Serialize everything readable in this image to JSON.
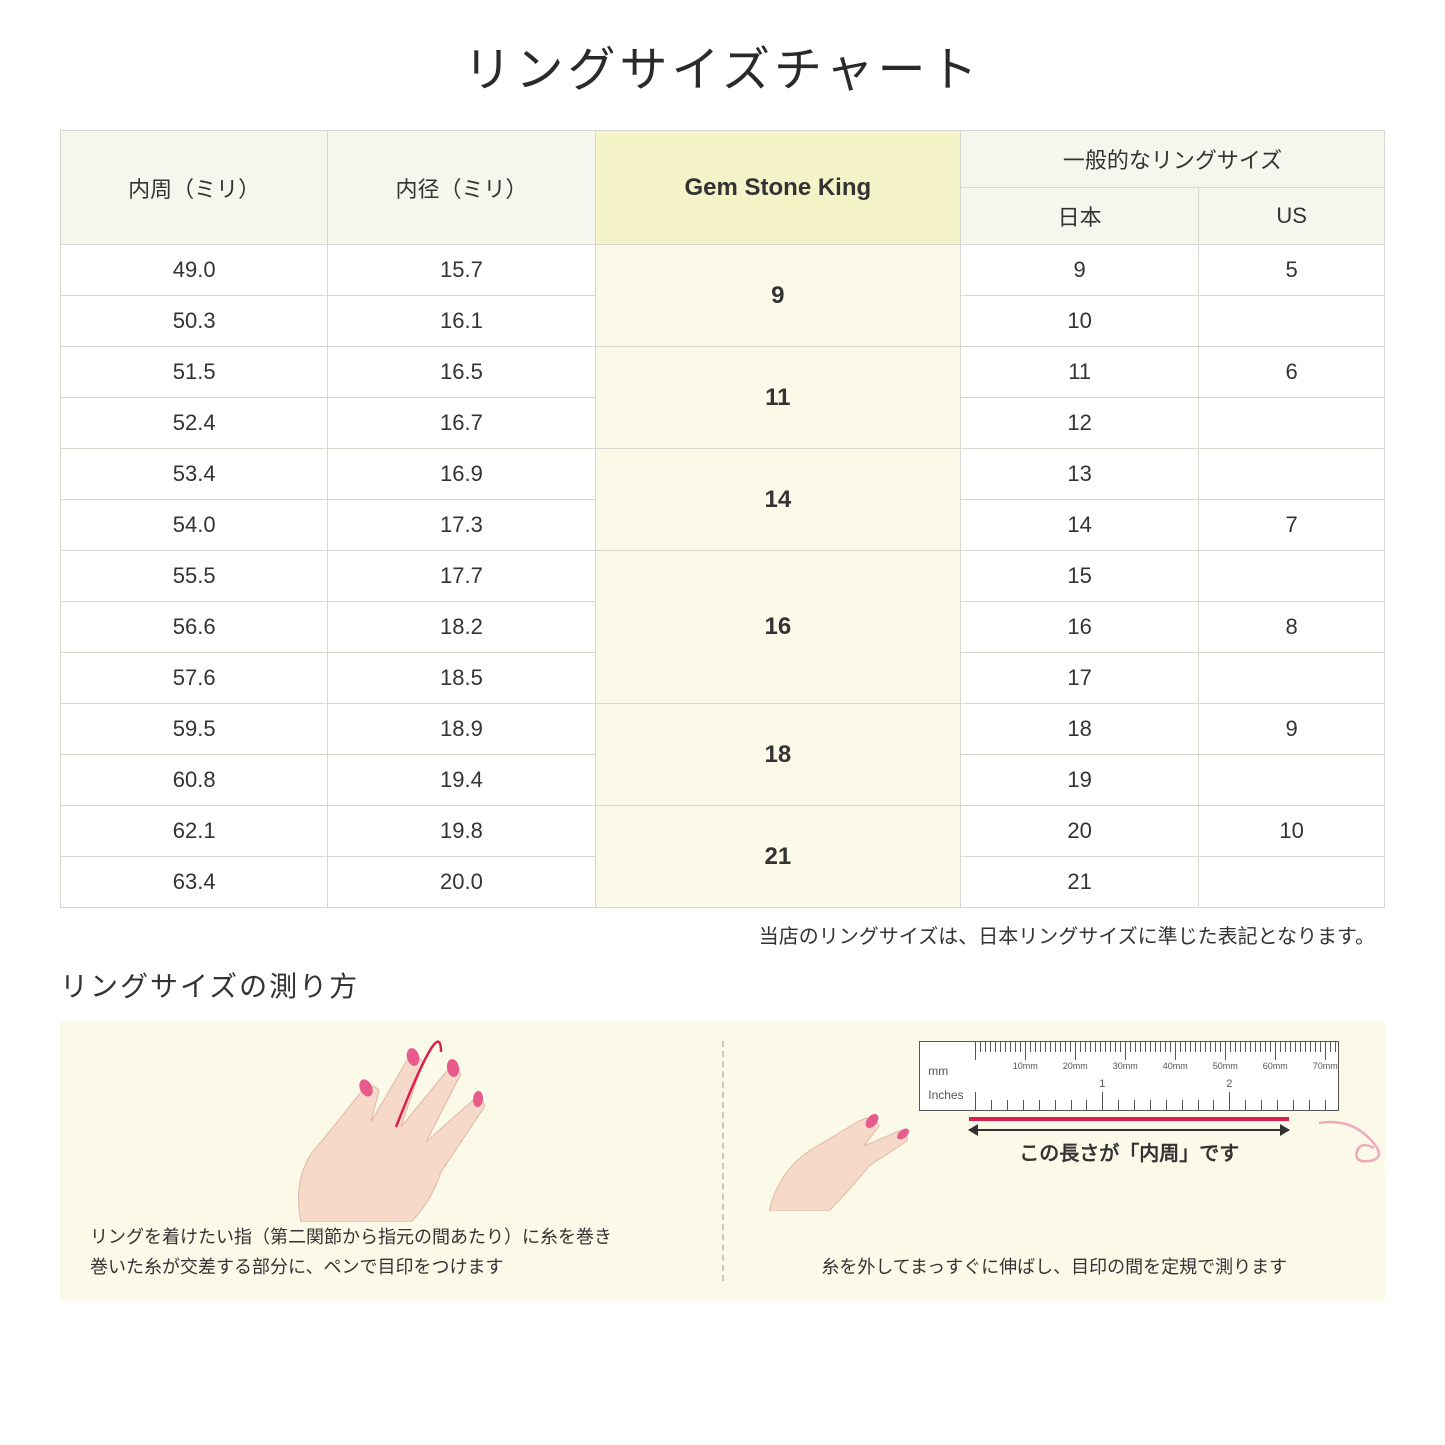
{
  "title": "リングサイズチャート",
  "headers": {
    "circumference": "内周（ミリ）",
    "diameter": "内径（ミリ）",
    "gsk": "Gem Stone King",
    "general": "一般的なリングサイズ",
    "japan": "日本",
    "us": "US"
  },
  "groups": [
    {
      "gsk": "9",
      "rows": [
        {
          "c": "49.0",
          "d": "15.7",
          "jp": "9",
          "us": "5"
        },
        {
          "c": "50.3",
          "d": "16.1",
          "jp": "10",
          "us": ""
        }
      ]
    },
    {
      "gsk": "11",
      "rows": [
        {
          "c": "51.5",
          "d": "16.5",
          "jp": "11",
          "us": "6"
        },
        {
          "c": "52.4",
          "d": "16.7",
          "jp": "12",
          "us": ""
        }
      ]
    },
    {
      "gsk": "14",
      "rows": [
        {
          "c": "53.4",
          "d": "16.9",
          "jp": "13",
          "us": ""
        },
        {
          "c": "54.0",
          "d": "17.3",
          "jp": "14",
          "us": "7"
        }
      ]
    },
    {
      "gsk": "16",
      "rows": [
        {
          "c": "55.5",
          "d": "17.7",
          "jp": "15",
          "us": ""
        },
        {
          "c": "56.6",
          "d": "18.2",
          "jp": "16",
          "us": "8"
        },
        {
          "c": "57.6",
          "d": "18.5",
          "jp": "17",
          "us": ""
        }
      ]
    },
    {
      "gsk": "18",
      "rows": [
        {
          "c": "59.5",
          "d": "18.9",
          "jp": "18",
          "us": "9"
        },
        {
          "c": "60.8",
          "d": "19.4",
          "jp": "19",
          "us": ""
        }
      ]
    },
    {
      "gsk": "21",
      "rows": [
        {
          "c": "62.1",
          "d": "19.8",
          "jp": "20",
          "us": "10"
        },
        {
          "c": "63.4",
          "d": "20.0",
          "jp": "21",
          "us": ""
        }
      ]
    }
  ],
  "note": "当店のリングサイズは、日本リングサイズに準じた表記となります。",
  "subtitle": "リングサイズの測り方",
  "guide": {
    "left_line1": "リングを着けたい指（第二関節から指元の間あたり）に糸を巻き",
    "left_line2": "巻いた糸が交差する部分に、ペンで目印をつけます",
    "right_caption": "この長さが「内周」です",
    "right_text": "糸を外してまっすぐに伸ばし、目印の間を定規で測ります",
    "ruler_mm_label": "mm",
    "ruler_in_label": "Inches",
    "ruler_mm_marks": [
      "10mm",
      "20mm",
      "30mm",
      "40mm",
      "50mm",
      "60mm",
      "70mm"
    ],
    "ruler_in_marks": [
      "1",
      "2"
    ]
  },
  "colors": {
    "header_bg": "#f6f5ee",
    "gsk_header_bg": "#f5f3c8",
    "gsk_cell_bg": "#fbfae8",
    "border": "#d8d6d0",
    "guide_bg": "#fbf9e8",
    "hand_skin": "#f7d9c9",
    "hand_nail": "#e85a8c",
    "thread": "#d91f4e"
  }
}
